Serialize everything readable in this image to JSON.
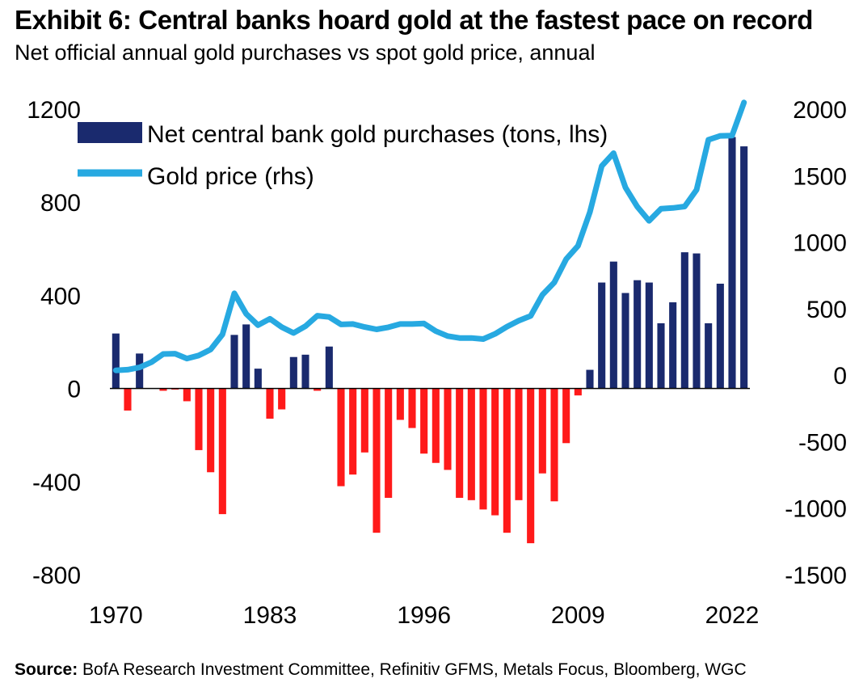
{
  "title": "Exhibit 6: Central banks hoard gold at the fastest pace on record",
  "subtitle": "Net official annual gold purchases vs spot gold price, annual",
  "source": {
    "label": "Source:",
    "text": " BofA Research Investment Committee, Refinitiv GFMS, Metals Focus, Bloomberg, WGC"
  },
  "colors": {
    "purchase": "#1a2a6e",
    "sale": "#ff1a1a",
    "price": "#27a9e1"
  },
  "chart_data": {
    "type": "bar",
    "x": [
      1970,
      1971,
      1972,
      1973,
      1974,
      1975,
      1976,
      1977,
      1978,
      1979,
      1980,
      1981,
      1982,
      1983,
      1984,
      1985,
      1986,
      1987,
      1988,
      1989,
      1990,
      1991,
      1992,
      1993,
      1994,
      1995,
      1996,
      1997,
      1998,
      1999,
      2000,
      2001,
      2002,
      2003,
      2004,
      2005,
      2006,
      2007,
      2008,
      2009,
      2010,
      2011,
      2012,
      2013,
      2014,
      2015,
      2016,
      2017,
      2018,
      2019,
      2020,
      2021,
      2022,
      2023
    ],
    "series": [
      {
        "name": "Net central bank gold purchases (tons, lhs)",
        "axis": "left",
        "kind": "bar",
        "values": [
          236,
          -95,
          150,
          0,
          -10,
          -5,
          -55,
          -265,
          -360,
          -540,
          230,
          275,
          85,
          -130,
          -90,
          135,
          145,
          -10,
          180,
          -420,
          -370,
          -275,
          -620,
          -470,
          -135,
          -170,
          -280,
          -320,
          -350,
          -470,
          -480,
          -520,
          -545,
          -620,
          -480,
          -665,
          -365,
          -485,
          -235,
          -30,
          80,
          455,
          545,
          410,
          465,
          455,
          280,
          370,
          585,
          580,
          280,
          450,
          1080,
          1040
        ]
      },
      {
        "name": "Gold price (rhs)",
        "axis": "right",
        "kind": "line",
        "values": [
          36,
          41,
          58,
          97,
          159,
          161,
          125,
          148,
          193,
          306,
          615,
          460,
          376,
          424,
          361,
          317,
          368,
          447,
          437,
          381,
          384,
          362,
          344,
          360,
          384,
          384,
          388,
          331,
          294,
          279,
          279,
          271,
          310,
          364,
          409,
          445,
          604,
          697,
          872,
          972,
          1225,
          1572,
          1669,
          1411,
          1266,
          1160,
          1251,
          1257,
          1268,
          1393,
          1770,
          1799,
          1801,
          2050
        ]
      }
    ],
    "categories_shown": [
      "1970",
      "1983",
      "1996",
      "2009",
      "2022"
    ],
    "left_ticks": [
      "1200",
      "800",
      "400",
      "0",
      "-400",
      "-800"
    ],
    "right_ticks": [
      "2000",
      "1500",
      "1000",
      "500",
      "0",
      "-500",
      "-1000",
      "-1500"
    ],
    "ylim_left": [
      -800,
      1200
    ],
    "ylim_right": [
      -1500,
      2000
    ],
    "legend_position": "top-left"
  }
}
